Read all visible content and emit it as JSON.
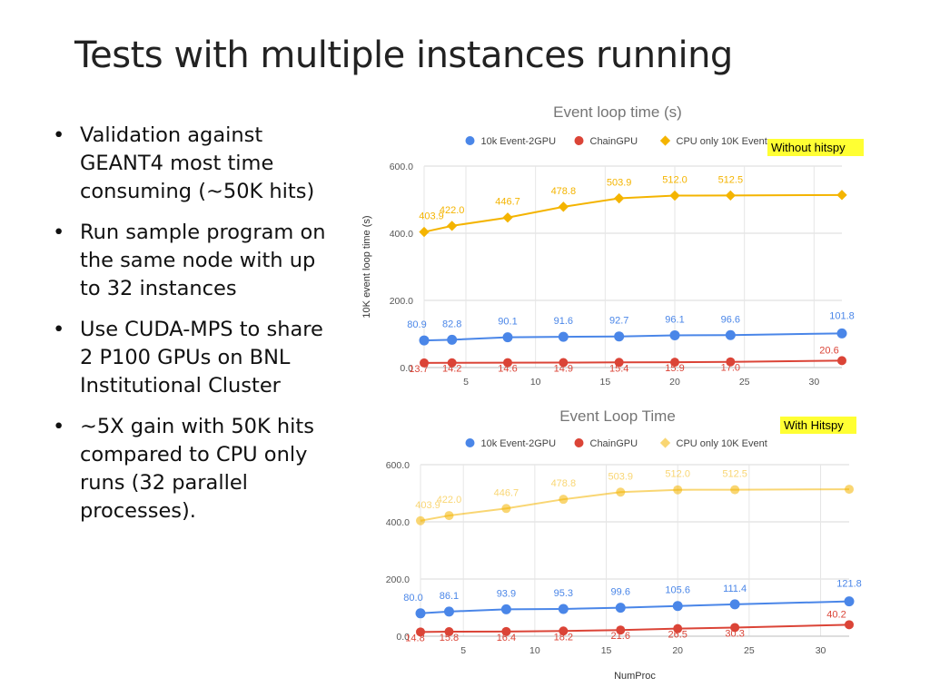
{
  "slide": {
    "title": "Tests with multiple instances running",
    "bullet_symbol": "•",
    "bullets": [
      "Validation against GEANT4 most time consuming (~50K hits)",
      "Run sample program on the same node with up to 32 instances",
      "Use CUDA-MPS to share 2 P100 GPUs on BNL Institutional Cluster",
      "~5X gain with 50K hits compared to CPU only runs (32 parallel processes)."
    ]
  },
  "chart_data": [
    {
      "type": "line",
      "title": "Event loop time (s)",
      "ylabel": "10K event loop time (s)",
      "xlabel": "",
      "badge": "Without hitspy",
      "badge_color": "#ffff33",
      "xlim": [
        2,
        32
      ],
      "ylim": [
        0,
        600
      ],
      "xticks": [
        5,
        10,
        15,
        20,
        25,
        30
      ],
      "yticks": [
        0,
        200,
        400,
        600
      ],
      "ytick_labels": [
        "0.0",
        "200.0",
        "400.0",
        "600.0"
      ],
      "x": [
        2,
        4,
        8,
        12,
        16,
        20,
        24,
        32
      ],
      "series": [
        {
          "name": "10k Event-2GPU",
          "color": "#4a86e8",
          "opacity": 1,
          "values": [
            80.9,
            82.8,
            90.1,
            91.6,
            92.7,
            96.1,
            96.6,
            101.8
          ],
          "labels": [
            "80.9",
            "82.8",
            "90.1",
            "91.6",
            "92.7",
            "96.1",
            "96.6",
            "101.8"
          ]
        },
        {
          "name": "ChainGPU",
          "color": "#db4437",
          "opacity": 1,
          "values": [
            13.7,
            14.2,
            14.6,
            14.9,
            15.4,
            15.9,
            17.0,
            20.6
          ],
          "labels": [
            "13.7",
            "14.2",
            "14.6",
            "14.9",
            "15.4",
            "15.9",
            "17.0",
            "20.6"
          ]
        },
        {
          "name": "CPU only 10K Event",
          "color": "#f4b400",
          "opacity": 1,
          "values": [
            403.9,
            422.0,
            446.7,
            478.8,
            503.9,
            512.0,
            512.5,
            514.0
          ],
          "labels": [
            "403.9",
            "422.0",
            "446.7",
            "478.8",
            "503.9",
            "512.0",
            "512.5",
            ""
          ]
        }
      ]
    },
    {
      "type": "line",
      "title": "Event Loop Time",
      "ylabel": "",
      "xlabel": "NumProc",
      "badge": "With Hitspy",
      "badge_color": "#ffff33",
      "xlim": [
        2,
        32
      ],
      "ylim": [
        0,
        600
      ],
      "xticks": [
        5,
        10,
        15,
        20,
        25,
        30
      ],
      "yticks": [
        0,
        200,
        400,
        600
      ],
      "ytick_labels": [
        "0.0",
        "200.0",
        "400.0",
        "600.0"
      ],
      "x": [
        2,
        4,
        8,
        12,
        16,
        20,
        24,
        32
      ],
      "series": [
        {
          "name": "10k Event-2GPU",
          "color": "#4a86e8",
          "opacity": 1,
          "values": [
            80.0,
            86.1,
            93.9,
            95.3,
            99.6,
            105.6,
            111.4,
            121.8
          ],
          "labels": [
            "80.0",
            "86.1",
            "93.9",
            "95.3",
            "99.6",
            "105.6",
            "111.4",
            "121.8"
          ]
        },
        {
          "name": "ChainGPU",
          "color": "#db4437",
          "opacity": 1,
          "values": [
            14.8,
            15.8,
            16.4,
            18.2,
            21.6,
            26.5,
            30.3,
            40.2
          ],
          "labels": [
            "14.8",
            "15.8",
            "16.4",
            "18.2",
            "21.6",
            "26.5",
            "30.3",
            "40.2"
          ]
        },
        {
          "name": "CPU only 10K Event",
          "color": "#f4b400",
          "opacity": 0.55,
          "values": [
            403.9,
            422.0,
            446.7,
            478.8,
            503.9,
            512.0,
            512.5,
            514.0
          ],
          "labels": [
            "403.9",
            "422.0",
            "446.7",
            "478.8",
            "503.9",
            "512.0",
            "512.5",
            ""
          ]
        }
      ]
    }
  ]
}
